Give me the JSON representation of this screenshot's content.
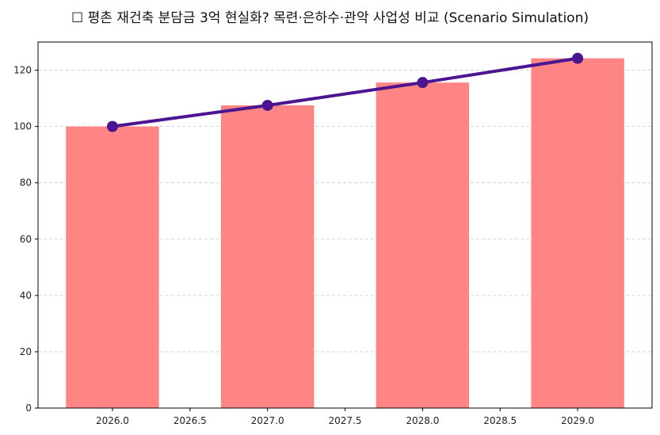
{
  "chart_data": {
    "type": "bar+line",
    "title": "☐ 평촌 재건축 분담금 3억 현실화? 목련·은하수·관악 사업성 비교 (Scenario Simulation)",
    "x": [
      2026,
      2027,
      2028,
      2029
    ],
    "bar_values": [
      100,
      107.5,
      115.6,
      124.2
    ],
    "line_values": [
      100,
      107.5,
      115.6,
      124.2
    ],
    "xlim": [
      2025.52,
      2029.48
    ],
    "ylim": [
      0,
      130
    ],
    "xticks": [
      "2026.0",
      "2026.5",
      "2027.0",
      "2027.5",
      "2028.0",
      "2028.5",
      "2029.0"
    ],
    "yticks": [
      "0",
      "20",
      "40",
      "60",
      "80",
      "100",
      "120"
    ],
    "grid": "y dashed",
    "bar_color": "#ff8585",
    "line_color": "#4b1591"
  }
}
